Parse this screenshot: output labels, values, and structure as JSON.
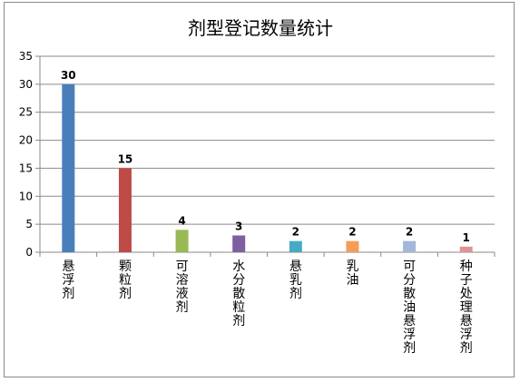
{
  "chart_data": {
    "type": "bar",
    "title": "剂型登记数量统计",
    "categories": [
      "悬浮剂",
      "颗粒剂",
      "可溶液剂",
      "水分散粒剂",
      "悬乳剂",
      "乳油",
      "可分散油悬浮剂",
      "种子处理悬浮剂"
    ],
    "values": [
      30,
      15,
      4,
      3,
      2,
      2,
      2,
      1
    ],
    "colors": [
      "#4a7ebb",
      "#be4b48",
      "#98b954",
      "#7d60a0",
      "#46aac5",
      "#f59d56",
      "#a2b7d9",
      "#da9695"
    ],
    "ylim": [
      0,
      35
    ],
    "yticks": [
      0,
      5,
      10,
      15,
      20,
      25,
      30,
      35
    ],
    "xlabel": "",
    "ylabel": "",
    "grid": true,
    "legend": "none"
  }
}
